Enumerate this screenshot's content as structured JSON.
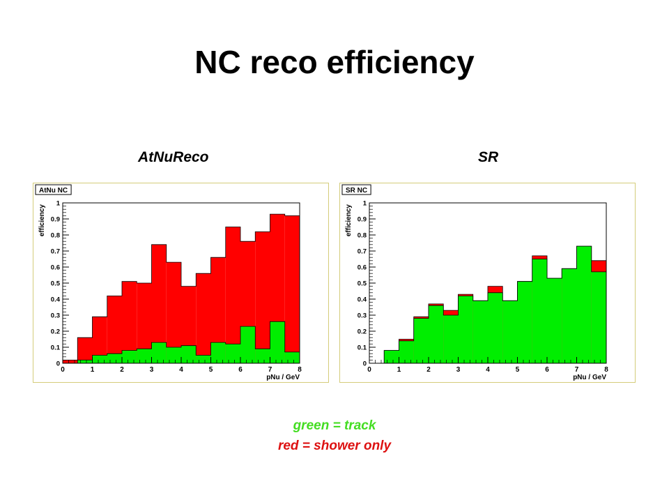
{
  "page": {
    "title": "NC reco efficiency",
    "left_caption": "AtNuReco",
    "right_caption": "SR",
    "legend_green": "green = track",
    "legend_red": "red = shower only",
    "colors": {
      "track": "#00ee00",
      "shower": "#ff0000",
      "frame": "#d4cc7a"
    }
  },
  "chart_data": [
    {
      "type": "bar",
      "title": "AtNu NC",
      "xlabel": "pNu / GeV",
      "ylabel": "efficiency",
      "xlim": [
        0,
        8
      ],
      "ylim": [
        0,
        1
      ],
      "x_ticks": [
        "0",
        "1",
        "2",
        "3",
        "4",
        "5",
        "6",
        "7",
        "8"
      ],
      "y_ticks": [
        "0",
        "0.1",
        "0.2",
        "0.3",
        "0.4",
        "0.5",
        "0.6",
        "0.7",
        "0.8",
        "0.9",
        "1"
      ],
      "bin_edges": [
        0,
        0.5,
        1,
        1.5,
        2,
        2.5,
        3,
        3.5,
        4,
        4.5,
        5,
        5.5,
        6,
        6.5,
        7,
        7.5,
        8
      ],
      "series": [
        {
          "name": "red = shower only",
          "color": "#ff0000",
          "stack": "total",
          "values": [
            0.02,
            0.16,
            0.29,
            0.42,
            0.51,
            0.5,
            0.74,
            0.63,
            0.48,
            0.56,
            0.66,
            0.85,
            0.76,
            0.82,
            0.93,
            0.92
          ]
        },
        {
          "name": "green = track",
          "color": "#00ee00",
          "values": [
            0.0,
            0.02,
            0.05,
            0.06,
            0.08,
            0.09,
            0.13,
            0.1,
            0.11,
            0.05,
            0.13,
            0.12,
            0.23,
            0.09,
            0.26,
            0.07
          ]
        }
      ]
    },
    {
      "type": "bar",
      "title": "SR NC",
      "xlabel": "pNu / GeV",
      "ylabel": "efficiency",
      "xlim": [
        0,
        8
      ],
      "ylim": [
        0,
        1
      ],
      "x_ticks": [
        "0",
        "1",
        "2",
        "3",
        "4",
        "5",
        "6",
        "7",
        "8"
      ],
      "y_ticks": [
        "0",
        "0.1",
        "0.2",
        "0.3",
        "0.4",
        "0.5",
        "0.6",
        "0.7",
        "0.8",
        "0.9",
        "1"
      ],
      "bin_edges": [
        0,
        0.5,
        1,
        1.5,
        2,
        2.5,
        3,
        3.5,
        4,
        4.5,
        5,
        5.5,
        6,
        6.5,
        7,
        7.5,
        8
      ],
      "series": [
        {
          "name": "red = shower only",
          "color": "#ff0000",
          "stack": "total",
          "values": [
            0.0,
            0.08,
            0.15,
            0.29,
            0.37,
            0.33,
            0.43,
            0.39,
            0.48,
            0.39,
            0.51,
            0.67,
            0.53,
            0.59,
            0.73,
            0.64
          ]
        },
        {
          "name": "green = track",
          "color": "#00ee00",
          "values": [
            0.0,
            0.08,
            0.14,
            0.28,
            0.36,
            0.3,
            0.42,
            0.39,
            0.44,
            0.39,
            0.51,
            0.65,
            0.53,
            0.59,
            0.73,
            0.57
          ]
        }
      ]
    }
  ]
}
